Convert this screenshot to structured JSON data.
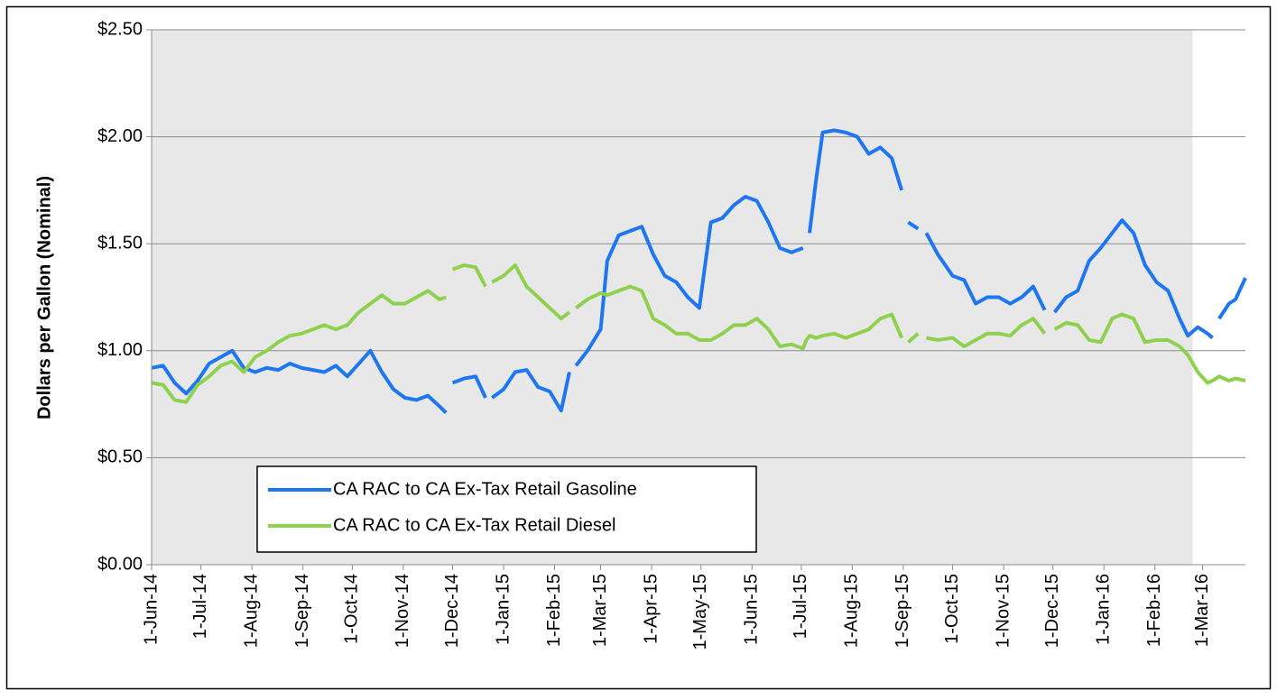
{
  "chart_data": {
    "type": "line",
    "y_label": "Dollars per Gallon (Nominal)",
    "x": [
      "2014-06-01",
      "2014-06-08",
      "2014-06-15",
      "2014-06-22",
      "2014-06-29",
      "2014-07-06",
      "2014-07-13",
      "2014-07-20",
      "2014-07-27",
      "2014-08-03",
      "2014-08-10",
      "2014-08-17",
      "2014-08-24",
      "2014-08-31",
      "2014-09-07",
      "2014-09-14",
      "2014-09-21",
      "2014-09-28",
      "2014-10-05",
      "2014-10-12",
      "2014-10-19",
      "2014-10-26",
      "2014-11-02",
      "2014-11-09",
      "2014-11-16",
      "2014-11-23",
      "2014-11-27",
      "2014-11-29",
      "2014-12-01",
      "2014-12-08",
      "2014-12-15",
      "2014-12-21",
      "2014-12-23",
      "2014-12-25",
      "2015-01-01",
      "2015-01-08",
      "2015-01-15",
      "2015-01-22",
      "2015-01-29",
      "2015-02-05",
      "2015-02-10",
      "2015-02-12",
      "2015-02-14",
      "2015-02-21",
      "2015-03-01",
      "2015-03-05",
      "2015-03-12",
      "2015-03-19",
      "2015-03-26",
      "2015-04-02",
      "2015-04-09",
      "2015-04-16",
      "2015-04-23",
      "2015-04-30",
      "2015-05-07",
      "2015-05-14",
      "2015-05-21",
      "2015-05-28",
      "2015-06-04",
      "2015-06-11",
      "2015-06-18",
      "2015-06-25",
      "2015-07-02",
      "2015-07-04",
      "2015-07-06",
      "2015-07-10",
      "2015-07-14",
      "2015-07-21",
      "2015-07-28",
      "2015-08-04",
      "2015-08-11",
      "2015-08-18",
      "2015-08-25",
      "2015-08-31",
      "2015-09-02",
      "2015-09-04",
      "2015-09-10",
      "2015-09-12",
      "2015-09-15",
      "2015-09-22",
      "2015-10-01",
      "2015-10-08",
      "2015-10-15",
      "2015-10-22",
      "2015-10-29",
      "2015-11-05",
      "2015-11-12",
      "2015-11-19",
      "2015-11-26",
      "2015-11-29",
      "2015-12-02",
      "2015-12-09",
      "2015-12-16",
      "2015-12-23",
      "2015-12-30",
      "2016-01-06",
      "2016-01-12",
      "2016-01-19",
      "2016-01-26",
      "2016-02-02",
      "2016-02-09",
      "2016-02-16",
      "2016-02-21",
      "2016-02-27",
      "2016-03-04",
      "2016-03-07",
      "2016-03-09",
      "2016-03-11",
      "2016-03-17",
      "2016-03-21",
      "2016-03-27"
    ],
    "series": [
      {
        "name": "CA RAC to CA Ex-Tax Retail Gasoline",
        "color": "#1f77f0",
        "values": [
          0.92,
          0.93,
          0.85,
          0.8,
          0.86,
          0.94,
          0.97,
          1.0,
          0.92,
          0.9,
          0.92,
          0.91,
          0.94,
          0.92,
          0.91,
          0.9,
          0.93,
          0.88,
          0.94,
          1.0,
          0.9,
          0.82,
          0.78,
          0.77,
          0.79,
          0.74,
          0.71,
          null,
          0.85,
          0.87,
          0.88,
          0.78,
          null,
          0.78,
          0.82,
          0.9,
          0.91,
          0.83,
          0.81,
          0.72,
          0.9,
          null,
          0.93,
          1.0,
          1.1,
          1.42,
          1.54,
          1.56,
          1.58,
          1.45,
          1.35,
          1.32,
          1.25,
          1.2,
          1.6,
          1.62,
          1.68,
          1.72,
          1.7,
          1.6,
          1.48,
          1.46,
          1.48,
          null,
          1.55,
          1.8,
          2.02,
          2.03,
          2.02,
          2.0,
          1.92,
          1.95,
          1.9,
          1.75,
          null,
          1.6,
          1.57,
          null,
          1.55,
          1.45,
          1.35,
          1.33,
          1.22,
          1.25,
          1.25,
          1.22,
          1.25,
          1.3,
          1.19,
          null,
          1.18,
          1.25,
          1.28,
          1.42,
          1.48,
          1.55,
          1.61,
          1.55,
          1.4,
          1.32,
          1.28,
          1.15,
          1.07,
          1.11,
          1.08,
          1.06,
          null,
          1.15,
          1.22,
          1.24,
          1.34
        ]
      },
      {
        "name": "CA RAC to CA Ex-Tax Retail Diesel",
        "color": "#8fd14f",
        "values": [
          0.85,
          0.84,
          0.77,
          0.76,
          0.84,
          0.88,
          0.93,
          0.95,
          0.9,
          0.97,
          1.0,
          1.04,
          1.07,
          1.08,
          1.1,
          1.12,
          1.1,
          1.12,
          1.18,
          1.22,
          1.26,
          1.22,
          1.22,
          1.25,
          1.28,
          1.24,
          1.25,
          null,
          1.38,
          1.4,
          1.39,
          1.3,
          null,
          1.32,
          1.35,
          1.4,
          1.3,
          1.25,
          1.2,
          1.15,
          1.18,
          null,
          1.2,
          1.24,
          1.27,
          1.26,
          1.28,
          1.3,
          1.28,
          1.15,
          1.12,
          1.08,
          1.08,
          1.05,
          1.05,
          1.08,
          1.12,
          1.12,
          1.15,
          1.1,
          1.02,
          1.03,
          1.01,
          1.05,
          1.07,
          1.06,
          1.07,
          1.08,
          1.06,
          1.08,
          1.1,
          1.15,
          1.17,
          1.06,
          null,
          1.04,
          1.08,
          null,
          1.06,
          1.05,
          1.06,
          1.02,
          1.05,
          1.08,
          1.08,
          1.07,
          1.12,
          1.15,
          1.08,
          null,
          1.1,
          1.13,
          1.12,
          1.05,
          1.04,
          1.15,
          1.17,
          1.15,
          1.04,
          1.05,
          1.05,
          1.02,
          0.98,
          0.9,
          0.85,
          0.86,
          0.87,
          0.88,
          0.86,
          0.87,
          0.86
        ]
      }
    ],
    "xlim": [
      "2014-06-01",
      "2016-03-27"
    ],
    "xticks": [
      {
        "value": "2014-06-01",
        "label": "1-Jun-14"
      },
      {
        "value": "2014-07-01",
        "label": "1-Jul-14"
      },
      {
        "value": "2014-08-01",
        "label": "1-Aug-14"
      },
      {
        "value": "2014-09-01",
        "label": "1-Sep-14"
      },
      {
        "value": "2014-10-01",
        "label": "1-Oct-14"
      },
      {
        "value": "2014-11-01",
        "label": "1-Nov-14"
      },
      {
        "value": "2014-12-01",
        "label": "1-Dec-14"
      },
      {
        "value": "2015-01-01",
        "label": "1-Jan-15"
      },
      {
        "value": "2015-02-01",
        "label": "1-Feb-15"
      },
      {
        "value": "2015-03-01",
        "label": "1-Mar-15"
      },
      {
        "value": "2015-04-01",
        "label": "1-Apr-15"
      },
      {
        "value": "2015-05-01",
        "label": "1-May-15"
      },
      {
        "value": "2015-06-01",
        "label": "1-Jun-15"
      },
      {
        "value": "2015-07-01",
        "label": "1-Jul-15"
      },
      {
        "value": "2015-08-01",
        "label": "1-Aug-15"
      },
      {
        "value": "2015-09-01",
        "label": "1-Sep-15"
      },
      {
        "value": "2015-10-01",
        "label": "1-Oct-15"
      },
      {
        "value": "2015-11-01",
        "label": "1-Nov-15"
      },
      {
        "value": "2015-12-01",
        "label": "1-Dec-15"
      },
      {
        "value": "2016-01-01",
        "label": "1-Jan-16"
      },
      {
        "value": "2016-02-01",
        "label": "1-Feb-16"
      },
      {
        "value": "2016-03-01",
        "label": "1-Mar-16"
      }
    ],
    "ylim": [
      0,
      2.5
    ],
    "yticks": [
      {
        "value": 0,
        "label": "$0.00"
      },
      {
        "value": 0.5,
        "label": "$0.50"
      },
      {
        "value": 1,
        "label": "$1.00"
      },
      {
        "value": 1.5,
        "label": "$1.50"
      },
      {
        "value": 2,
        "label": "$2.00"
      },
      {
        "value": 2.5,
        "label": "$2.50"
      }
    ],
    "shaded_xlim": [
      "2014-06-01",
      "2016-02-24"
    ],
    "grid": true,
    "legend": "lower-left"
  }
}
